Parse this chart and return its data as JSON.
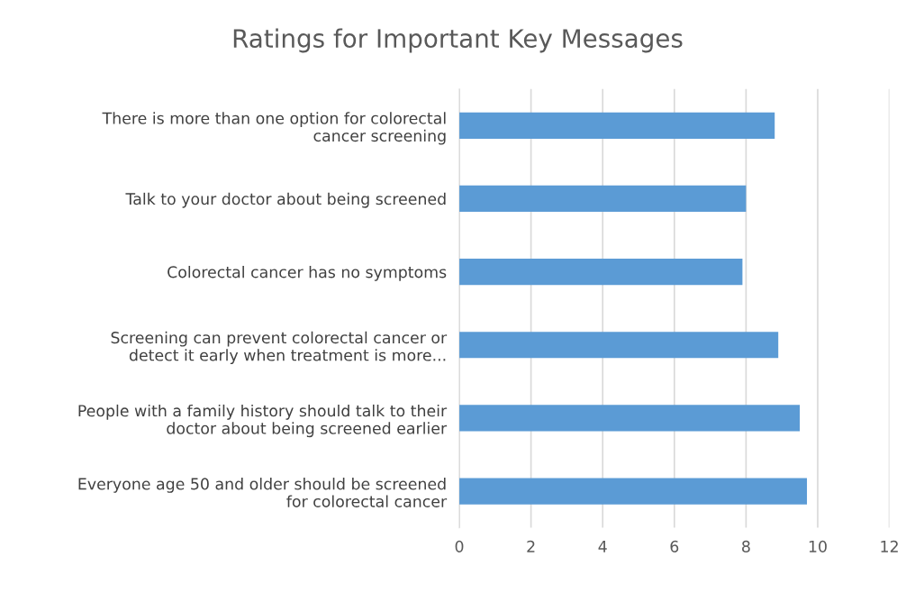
{
  "chart_data": {
    "type": "bar",
    "orientation": "horizontal",
    "title": "Ratings for Important Key Messages",
    "categories": [
      "There is more than one option for colorectal\ncancer screening",
      "Talk to your doctor about being screened",
      "Colorectal cancer has no symptoms",
      "Screening can prevent colorectal cancer or\ndetect it early when treatment is more...",
      "People with a family history should talk to their\ndoctor about being screened earlier",
      "Everyone age 50 and older should be screened\nfor colorectal cancer"
    ],
    "values": [
      8.8,
      8.0,
      7.9,
      8.9,
      9.5,
      9.7
    ],
    "color": "#5b9bd5",
    "xlim": [
      0,
      12
    ],
    "xticks": [
      0,
      2,
      4,
      6,
      8,
      10,
      12
    ],
    "grid": "x",
    "legend": false
  }
}
